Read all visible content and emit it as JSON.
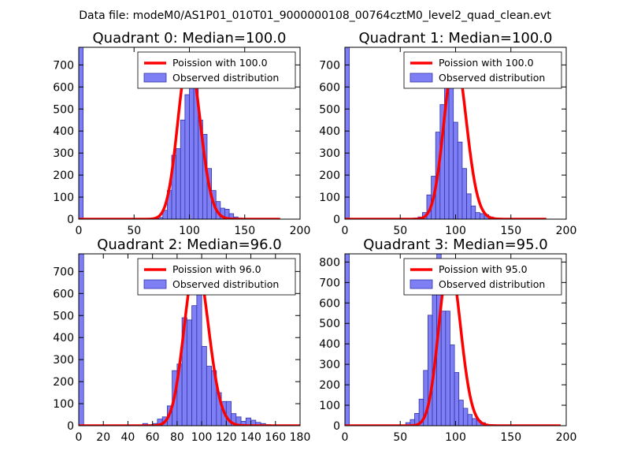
{
  "suptitle": "Data file: modeM0/AS1P01_010T01_9000000108_00764cztM0_level2_quad_clean.evt",
  "colors": {
    "bar_fill": "#7f7ff5",
    "bar_edge": "#3333aa",
    "curve": "#ff0000"
  },
  "chart_data": [
    {
      "type": "bar",
      "title": "Quadrant 0: Median=100.0",
      "xlim": [
        0,
        200
      ],
      "ylim": [
        0,
        780
      ],
      "xticks": [
        0,
        50,
        100,
        150,
        200
      ],
      "xtick_labels": [
        "0",
        "50",
        "100",
        "150",
        "200"
      ],
      "yticks": [
        0,
        100,
        200,
        300,
        400,
        500,
        600,
        700
      ],
      "ytick_labels": [
        "0",
        "100",
        "200",
        "300",
        "400",
        "500",
        "600",
        "700"
      ],
      "bin_width": 4,
      "zero_bin": {
        "x": 0,
        "count": 780
      },
      "bins_start": 68,
      "counts": [
        3,
        8,
        40,
        130,
        290,
        320,
        450,
        565,
        710,
        630,
        450,
        385,
        230,
        130,
        80,
        50,
        45,
        25,
        10,
        5
      ],
      "poisson_mean": 100.0,
      "poisson_peak": 740,
      "poisson_xmax": 182,
      "legend": [
        "Poission with 100.0",
        "Observed distribution"
      ]
    },
    {
      "type": "bar",
      "title": "Quadrant 1: Median=100.0",
      "xlim": [
        0,
        200
      ],
      "ylim": [
        0,
        780
      ],
      "xticks": [
        0,
        50,
        100,
        150,
        200
      ],
      "xtick_labels": [
        "0",
        "50",
        "100",
        "150",
        "200"
      ],
      "yticks": [
        0,
        100,
        200,
        300,
        400,
        500,
        600,
        700
      ],
      "ytick_labels": [
        "0",
        "100",
        "200",
        "300",
        "400",
        "500",
        "600",
        "700"
      ],
      "bin_width": 4,
      "zero_bin": {
        "x": 0,
        "count": 780
      },
      "bins_start": 58,
      "counts": [
        3,
        5,
        10,
        30,
        110,
        195,
        395,
        520,
        700,
        705,
        440,
        350,
        230,
        115,
        60,
        30,
        25,
        20,
        10,
        5
      ],
      "poisson_mean": 100.0,
      "poisson_peak": 740,
      "poisson_xmax": 182,
      "legend": [
        "Poission with 100.0",
        "Observed distribution"
      ]
    },
    {
      "type": "bar",
      "title": "Quadrant 2: Median=96.0",
      "xlim": [
        0,
        180
      ],
      "ylim": [
        0,
        780
      ],
      "xticks": [
        0,
        20,
        40,
        60,
        80,
        100,
        120,
        140,
        160,
        180
      ],
      "xtick_labels": [
        "0",
        "20",
        "40",
        "60",
        "80",
        "100",
        "120",
        "140",
        "160",
        "180"
      ],
      "yticks": [
        0,
        100,
        200,
        300,
        400,
        500,
        600,
        700
      ],
      "ytick_labels": [
        "0",
        "100",
        "200",
        "300",
        "400",
        "500",
        "600",
        "700"
      ],
      "bin_width": 4,
      "zero_bin": {
        "x": 0,
        "count": 780
      },
      "bins_start": 52,
      "counts": [
        10,
        5,
        10,
        30,
        40,
        90,
        250,
        280,
        490,
        480,
        545,
        710,
        360,
        270,
        250,
        150,
        110,
        110,
        55,
        40,
        20,
        35,
        25,
        15,
        10,
        5
      ],
      "poisson_mean": 96.0,
      "poisson_peak": 745,
      "poisson_xmax": 180,
      "legend": [
        "Poission with 96.0",
        "Observed distribution"
      ]
    },
    {
      "type": "bar",
      "title": "Quadrant 3: Median=95.0",
      "xlim": [
        0,
        200
      ],
      "ylim": [
        0,
        840
      ],
      "xticks": [
        0,
        50,
        100,
        150,
        200
      ],
      "xtick_labels": [
        "0",
        "50",
        "100",
        "150",
        "200"
      ],
      "yticks": [
        0,
        100,
        200,
        300,
        400,
        500,
        600,
        700,
        800
      ],
      "ytick_labels": [
        "0",
        "100",
        "200",
        "300",
        "400",
        "500",
        "600",
        "700",
        "800"
      ],
      "bin_width": 4,
      "zero_bin": {
        "x": 0,
        "count": 840
      },
      "bins_start": 55,
      "counts": [
        15,
        30,
        60,
        130,
        270,
        540,
        640,
        840,
        560,
        560,
        395,
        260,
        125,
        85,
        55,
        35,
        25,
        15,
        5
      ],
      "poisson_mean": 95.0,
      "poisson_peak": 805,
      "poisson_xmax": 195,
      "legend": [
        "Poission with 95.0",
        "Observed distribution"
      ]
    }
  ]
}
